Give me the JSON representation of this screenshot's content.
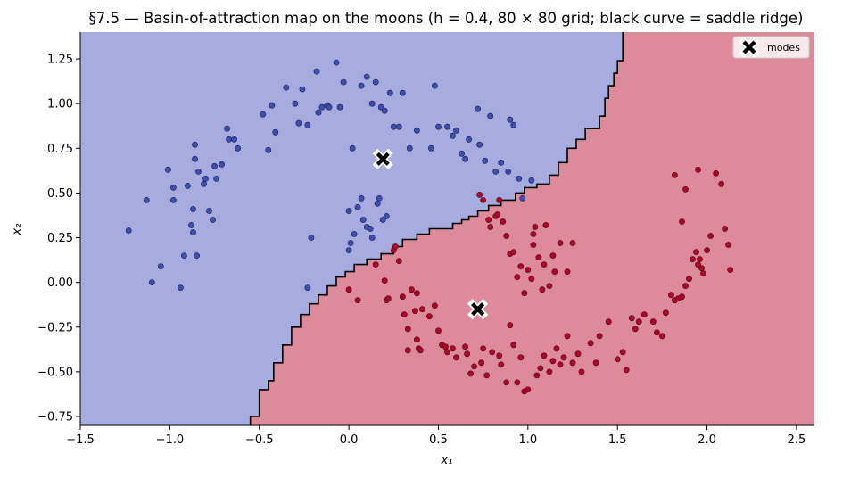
{
  "chart_data": {
    "type": "scatter",
    "title": "§7.5 — Basin-of-attraction map on the moons (h = 0.4, 80 × 80 grid; black curve = saddle ridge)",
    "xlabel": "x₁",
    "ylabel": "x₂",
    "xlim": [
      -1.5,
      2.6
    ],
    "ylim": [
      -0.8,
      1.4
    ],
    "xticks": [
      "−1.5",
      "−1.0",
      "−0.5",
      "0.0",
      "0.5",
      "1.0",
      "1.5",
      "2.0",
      "2.5"
    ],
    "yticks": [
      "−0.75",
      "−0.50",
      "−0.25",
      "0.00",
      "0.25",
      "0.50",
      "0.75",
      "1.00",
      "1.25"
    ],
    "legend_position": "top-right",
    "grid": false,
    "colors": {
      "basin_blue": "#a6acdf",
      "basin_red": "#dd8b9b",
      "point_blue": "#3b4fb8",
      "point_red": "#b40426",
      "ridge": "#000000"
    },
    "modes": [
      {
        "x": 0.19,
        "y": 0.69
      },
      {
        "x": 0.72,
        "y": -0.15
      }
    ],
    "series": [
      {
        "name": "modes",
        "points": [
          [
            0.19,
            0.69
          ],
          [
            0.72,
            -0.15
          ]
        ]
      },
      {
        "values": [
          [
            -1.23,
            0.29
          ],
          [
            -1.13,
            0.46
          ],
          [
            -1.1,
            0.0
          ],
          [
            -1.05,
            0.09
          ],
          [
            -1.01,
            0.63
          ],
          [
            -0.98,
            0.53
          ],
          [
            -0.98,
            0.46
          ],
          [
            -0.94,
            -0.03
          ],
          [
            -0.92,
            0.15
          ],
          [
            -0.9,
            0.54
          ],
          [
            -0.88,
            0.32
          ],
          [
            -0.87,
            0.28
          ],
          [
            -0.87,
            0.41
          ],
          [
            -0.86,
            0.77
          ],
          [
            -0.86,
            0.69
          ],
          [
            -0.85,
            0.15
          ],
          [
            -0.84,
            0.62
          ],
          [
            -0.81,
            0.55
          ],
          [
            -0.8,
            0.58
          ],
          [
            -0.78,
            0.4
          ],
          [
            -0.76,
            0.35
          ],
          [
            -0.75,
            0.65
          ],
          [
            -0.74,
            0.58
          ],
          [
            -0.71,
            0.66
          ],
          [
            -0.68,
            0.86
          ],
          [
            -0.67,
            0.8
          ],
          [
            -0.64,
            0.8
          ],
          [
            -0.48,
            0.94
          ],
          [
            -0.45,
            0.74
          ],
          [
            -0.43,
            0.99
          ],
          [
            -0.41,
            0.84
          ],
          [
            -0.35,
            1.09
          ],
          [
            -0.3,
            1.0
          ],
          [
            -0.28,
            0.89
          ],
          [
            -0.26,
            1.08
          ],
          [
            -0.23,
            0.88
          ],
          [
            -0.18,
            1.18
          ],
          [
            -0.17,
            0.95
          ],
          [
            -0.15,
            0.98
          ],
          [
            -0.12,
            0.99
          ],
          [
            -0.11,
            0.98
          ],
          [
            -0.07,
            1.23
          ],
          [
            -0.05,
            0.98
          ],
          [
            -0.03,
            1.12
          ],
          [
            0.02,
            0.75
          ],
          [
            0.07,
            1.1
          ],
          [
            0.1,
            1.15
          ],
          [
            0.13,
            1.0
          ],
          [
            0.15,
            1.12
          ],
          [
            0.18,
            0.98
          ],
          [
            0.2,
            0.96
          ],
          [
            0.23,
            1.06
          ],
          [
            0.25,
            0.87
          ],
          [
            0.28,
            0.87
          ],
          [
            0.3,
            1.06
          ],
          [
            0.34,
            0.75
          ],
          [
            0.38,
            0.85
          ],
          [
            0.46,
            0.75
          ],
          [
            0.48,
            1.1
          ],
          [
            0.5,
            0.87
          ],
          [
            0.55,
            0.87
          ],
          [
            0.58,
            0.82
          ],
          [
            0.6,
            0.85
          ],
          [
            0.63,
            0.72
          ],
          [
            0.65,
            0.69
          ],
          [
            0.67,
            0.8
          ],
          [
            0.72,
            0.97
          ],
          [
            0.73,
            0.77
          ],
          [
            0.76,
            0.68
          ],
          [
            0.79,
            0.93
          ],
          [
            0.82,
            0.62
          ],
          [
            0.85,
            0.67
          ],
          [
            0.89,
            0.62
          ],
          [
            0.9,
            0.91
          ],
          [
            0.92,
            0.88
          ],
          [
            0.95,
            0.58
          ],
          [
            0.97,
            0.47
          ],
          [
            1.02,
            0.57
          ],
          [
            -0.62,
            0.75
          ],
          [
            -0.21,
            0.25
          ],
          [
            0.0,
            0.4
          ],
          [
            0.03,
            0.27
          ],
          [
            0.05,
            0.42
          ],
          [
            0.07,
            0.47
          ],
          [
            0.08,
            0.35
          ],
          [
            0.1,
            0.31
          ],
          [
            0.12,
            0.3
          ],
          [
            0.13,
            0.25
          ],
          [
            0.16,
            0.44
          ],
          [
            0.17,
            0.47
          ],
          [
            0.19,
            0.35
          ],
          [
            0.21,
            0.37
          ],
          [
            -0.23,
            -0.03
          ],
          [
            0.01,
            0.22
          ],
          [
            0.0,
            0.18
          ]
        ]
      },
      {
        "values": [
          [
            0.0,
            -0.04
          ],
          [
            0.05,
            -0.1
          ],
          [
            0.15,
            0.1
          ],
          [
            0.2,
            0.01
          ],
          [
            0.21,
            -0.1
          ],
          [
            0.22,
            -0.09
          ],
          [
            0.25,
            0.18
          ],
          [
            0.26,
            0.2
          ],
          [
            0.28,
            0.12
          ],
          [
            0.3,
            -0.08
          ],
          [
            0.31,
            -0.18
          ],
          [
            0.33,
            -0.26
          ],
          [
            0.33,
            -0.38
          ],
          [
            0.35,
            -0.04
          ],
          [
            0.37,
            -0.16
          ],
          [
            0.38,
            -0.06
          ],
          [
            0.38,
            -0.32
          ],
          [
            0.39,
            -0.37
          ],
          [
            0.4,
            -0.38
          ],
          [
            0.41,
            -0.15
          ],
          [
            0.45,
            -0.19
          ],
          [
            0.48,
            -0.13
          ],
          [
            0.5,
            -0.27
          ],
          [
            0.52,
            -0.35
          ],
          [
            0.54,
            -0.36
          ],
          [
            0.55,
            -0.39
          ],
          [
            0.58,
            -0.37
          ],
          [
            0.6,
            -0.42
          ],
          [
            0.65,
            -0.36
          ],
          [
            0.66,
            -0.4
          ],
          [
            0.68,
            -0.51
          ],
          [
            0.7,
            -0.47
          ],
          [
            0.74,
            -0.45
          ],
          [
            0.75,
            -0.37
          ],
          [
            0.77,
            -0.52
          ],
          [
            0.8,
            -0.39
          ],
          [
            0.82,
            0.37
          ],
          [
            0.83,
            0.38
          ],
          [
            0.84,
            -0.41
          ],
          [
            0.85,
            -0.46
          ],
          [
            0.88,
            -0.56
          ],
          [
            0.9,
            -0.24
          ],
          [
            0.92,
            -0.35
          ],
          [
            0.94,
            -0.56
          ],
          [
            0.96,
            -0.42
          ],
          [
            0.98,
            -0.61
          ],
          [
            1.0,
            -0.6
          ],
          [
            1.02,
            0.02
          ],
          [
            1.03,
            0.27
          ],
          [
            1.05,
            -0.52
          ],
          [
            1.07,
            -0.48
          ],
          [
            1.09,
            -0.41
          ],
          [
            1.12,
            -0.5
          ],
          [
            1.14,
            -0.44
          ],
          [
            1.16,
            -0.37
          ],
          [
            1.18,
            -0.46
          ],
          [
            1.2,
            -0.42
          ],
          [
            1.22,
            -0.3
          ],
          [
            1.25,
            -0.45
          ],
          [
            1.28,
            -0.4
          ],
          [
            1.3,
            -0.5
          ],
          [
            1.35,
            -0.34
          ],
          [
            1.38,
            -0.45
          ],
          [
            1.4,
            -0.3
          ],
          [
            1.45,
            -0.22
          ],
          [
            1.5,
            -0.43
          ],
          [
            1.53,
            -0.39
          ],
          [
            1.55,
            -0.49
          ],
          [
            1.58,
            -0.2
          ],
          [
            1.6,
            -0.26
          ],
          [
            1.62,
            -0.22
          ],
          [
            1.65,
            -0.18
          ],
          [
            1.7,
            -0.22
          ],
          [
            1.72,
            -0.28
          ],
          [
            1.75,
            -0.3
          ],
          [
            1.77,
            -0.17
          ],
          [
            1.8,
            -0.07
          ],
          [
            1.82,
            -0.1
          ],
          [
            1.84,
            -0.09
          ],
          [
            1.86,
            -0.08
          ],
          [
            1.88,
            -0.02
          ],
          [
            1.9,
            0.02
          ],
          [
            1.92,
            0.13
          ],
          [
            1.94,
            0.17
          ],
          [
            1.95,
            0.1
          ],
          [
            1.96,
            0.13
          ],
          [
            1.97,
            0.08
          ],
          [
            1.98,
            0.05
          ],
          [
            2.0,
            0.18
          ],
          [
            2.02,
            0.26
          ],
          [
            2.05,
            0.61
          ],
          [
            2.08,
            0.55
          ],
          [
            2.1,
            0.3
          ],
          [
            2.12,
            0.21
          ],
          [
            2.13,
            0.07
          ],
          [
            1.82,
            0.6
          ],
          [
            1.88,
            0.52
          ],
          [
            1.95,
            0.63
          ],
          [
            1.86,
            0.34
          ],
          [
            0.73,
            0.49
          ],
          [
            0.75,
            0.46
          ],
          [
            0.78,
            0.35
          ],
          [
            0.79,
            0.31
          ],
          [
            0.84,
            0.46
          ],
          [
            0.86,
            0.34
          ],
          [
            0.88,
            0.26
          ],
          [
            0.9,
            0.16
          ],
          [
            0.92,
            0.17
          ],
          [
            0.94,
            0.03
          ],
          [
            0.96,
            0.09
          ],
          [
            0.98,
            -0.06
          ],
          [
            1.0,
            0.07
          ],
          [
            1.03,
            0.21
          ],
          [
            1.04,
            0.31
          ],
          [
            1.06,
            0.14
          ],
          [
            1.08,
            -0.04
          ],
          [
            1.09,
            0.1
          ],
          [
            1.1,
            0.32
          ],
          [
            1.12,
            -0.02
          ],
          [
            1.14,
            0.15
          ],
          [
            1.15,
            0.06
          ],
          [
            1.18,
            0.22
          ],
          [
            1.22,
            0.06
          ],
          [
            1.25,
            0.22
          ]
        ]
      }
    ],
    "ridge": [
      [
        -0.55,
        -0.8
      ],
      [
        -0.55,
        -0.75
      ],
      [
        -0.5,
        -0.75
      ],
      [
        -0.5,
        -0.6
      ],
      [
        -0.45,
        -0.6
      ],
      [
        -0.45,
        -0.55
      ],
      [
        -0.42,
        -0.55
      ],
      [
        -0.42,
        -0.45
      ],
      [
        -0.37,
        -0.45
      ],
      [
        -0.37,
        -0.35
      ],
      [
        -0.32,
        -0.35
      ],
      [
        -0.32,
        -0.25
      ],
      [
        -0.27,
        -0.25
      ],
      [
        -0.27,
        -0.18
      ],
      [
        -0.22,
        -0.18
      ],
      [
        -0.22,
        -0.12
      ],
      [
        -0.17,
        -0.12
      ],
      [
        -0.17,
        -0.07
      ],
      [
        -0.12,
        -0.07
      ],
      [
        -0.12,
        -0.02
      ],
      [
        -0.07,
        -0.02
      ],
      [
        -0.07,
        0.03
      ],
      [
        -0.02,
        0.03
      ],
      [
        -0.02,
        0.06
      ],
      [
        0.03,
        0.06
      ],
      [
        0.03,
        0.1
      ],
      [
        0.1,
        0.1
      ],
      [
        0.1,
        0.13
      ],
      [
        0.18,
        0.13
      ],
      [
        0.18,
        0.16
      ],
      [
        0.25,
        0.16
      ],
      [
        0.25,
        0.2
      ],
      [
        0.3,
        0.2
      ],
      [
        0.3,
        0.24
      ],
      [
        0.38,
        0.24
      ],
      [
        0.38,
        0.27
      ],
      [
        0.45,
        0.27
      ],
      [
        0.45,
        0.3
      ],
      [
        0.58,
        0.3
      ],
      [
        0.58,
        0.33
      ],
      [
        0.63,
        0.33
      ],
      [
        0.63,
        0.35
      ],
      [
        0.67,
        0.35
      ],
      [
        0.67,
        0.37
      ],
      [
        0.72,
        0.37
      ],
      [
        0.72,
        0.4
      ],
      [
        0.78,
        0.4
      ],
      [
        0.78,
        0.43
      ],
      [
        0.85,
        0.43
      ],
      [
        0.85,
        0.46
      ],
      [
        0.93,
        0.46
      ],
      [
        0.93,
        0.5
      ],
      [
        0.98,
        0.5
      ],
      [
        0.98,
        0.53
      ],
      [
        1.05,
        0.53
      ],
      [
        1.05,
        0.55
      ],
      [
        1.12,
        0.55
      ],
      [
        1.12,
        0.6
      ],
      [
        1.17,
        0.6
      ],
      [
        1.17,
        0.67
      ],
      [
        1.22,
        0.67
      ],
      [
        1.22,
        0.75
      ],
      [
        1.27,
        0.75
      ],
      [
        1.27,
        0.8
      ],
      [
        1.32,
        0.8
      ],
      [
        1.32,
        0.86
      ],
      [
        1.4,
        0.86
      ],
      [
        1.4,
        0.93
      ],
      [
        1.43,
        0.93
      ],
      [
        1.43,
        1.03
      ],
      [
        1.45,
        1.03
      ],
      [
        1.45,
        1.1
      ],
      [
        1.48,
        1.1
      ],
      [
        1.48,
        1.17
      ],
      [
        1.5,
        1.17
      ],
      [
        1.5,
        1.24
      ],
      [
        1.53,
        1.24
      ],
      [
        1.53,
        1.35
      ],
      [
        1.53,
        1.4
      ]
    ]
  }
}
